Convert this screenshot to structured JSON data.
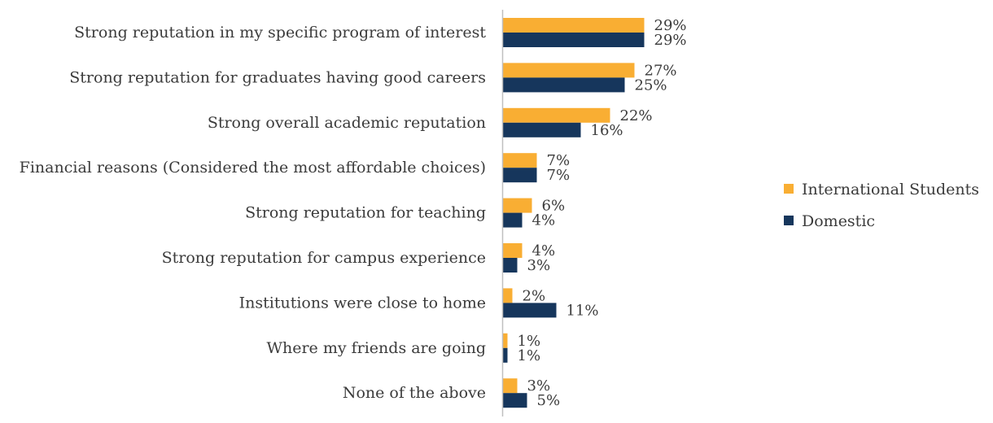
{
  "chart_data": {
    "type": "bar",
    "orientation": "horizontal",
    "categories": [
      "Strong reputation in my specific program of interest",
      "Strong reputation for graduates having good careers",
      "Strong overall academic reputation",
      "Financial reasons (Considered the most affordable choices)",
      "Strong reputation for teaching",
      "Strong reputation for campus experience",
      "Institutions were close to home",
      "Where my friends are going",
      "None of the above"
    ],
    "series": [
      {
        "name": "International Students",
        "color": "#F9AE33",
        "values": [
          29,
          27,
          22,
          7,
          6,
          4,
          2,
          1,
          3
        ],
        "labels": [
          "29%",
          "27%",
          "22%",
          "7%",
          "6%",
          "4%",
          "2%",
          "1%",
          "3%"
        ]
      },
      {
        "name": "Domestic",
        "color": "#16365C",
        "values": [
          29,
          25,
          16,
          7,
          4,
          3,
          11,
          1,
          5
        ],
        "labels": [
          "29%",
          "25%",
          "16%",
          "7%",
          "4%",
          "3%",
          "11%",
          "1%",
          "5%"
        ]
      }
    ],
    "legend_position": "right",
    "axis_color": "#BFBFBF",
    "xlim": [
      0,
      100
    ],
    "gridlines": false
  }
}
